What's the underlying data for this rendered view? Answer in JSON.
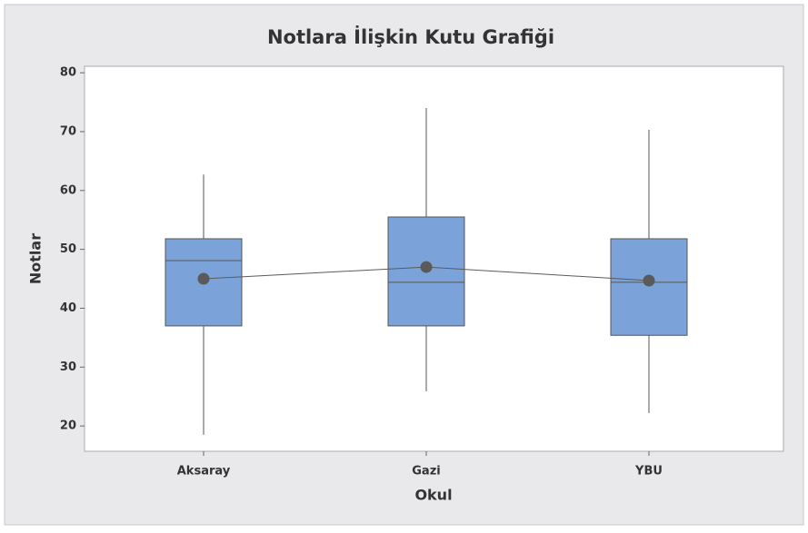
{
  "chart_data": {
    "type": "box",
    "title": "Notlara İlişkin Kutu Grafiği",
    "x_label": "Okul",
    "y_label": "Notlar",
    "categories": [
      "Aksaray",
      "Gazi",
      "YBU"
    ],
    "min": [
      18.5,
      25.9,
      22.2
    ],
    "q1": [
      37.0,
      37.0,
      35.4
    ],
    "median": [
      48.1,
      44.4,
      44.4
    ],
    "q3": [
      51.8,
      55.5,
      51.8
    ],
    "max": [
      62.7,
      74.0,
      70.3
    ],
    "mean": [
      45.0,
      47.0,
      44.7
    ],
    "color": "#7ba3d9",
    "mean_color": "#5a5a5a",
    "ylim": [
      15.7,
      81.1
    ],
    "yticks": [
      20,
      30,
      40,
      50,
      60,
      70,
      80
    ],
    "grid": false
  }
}
